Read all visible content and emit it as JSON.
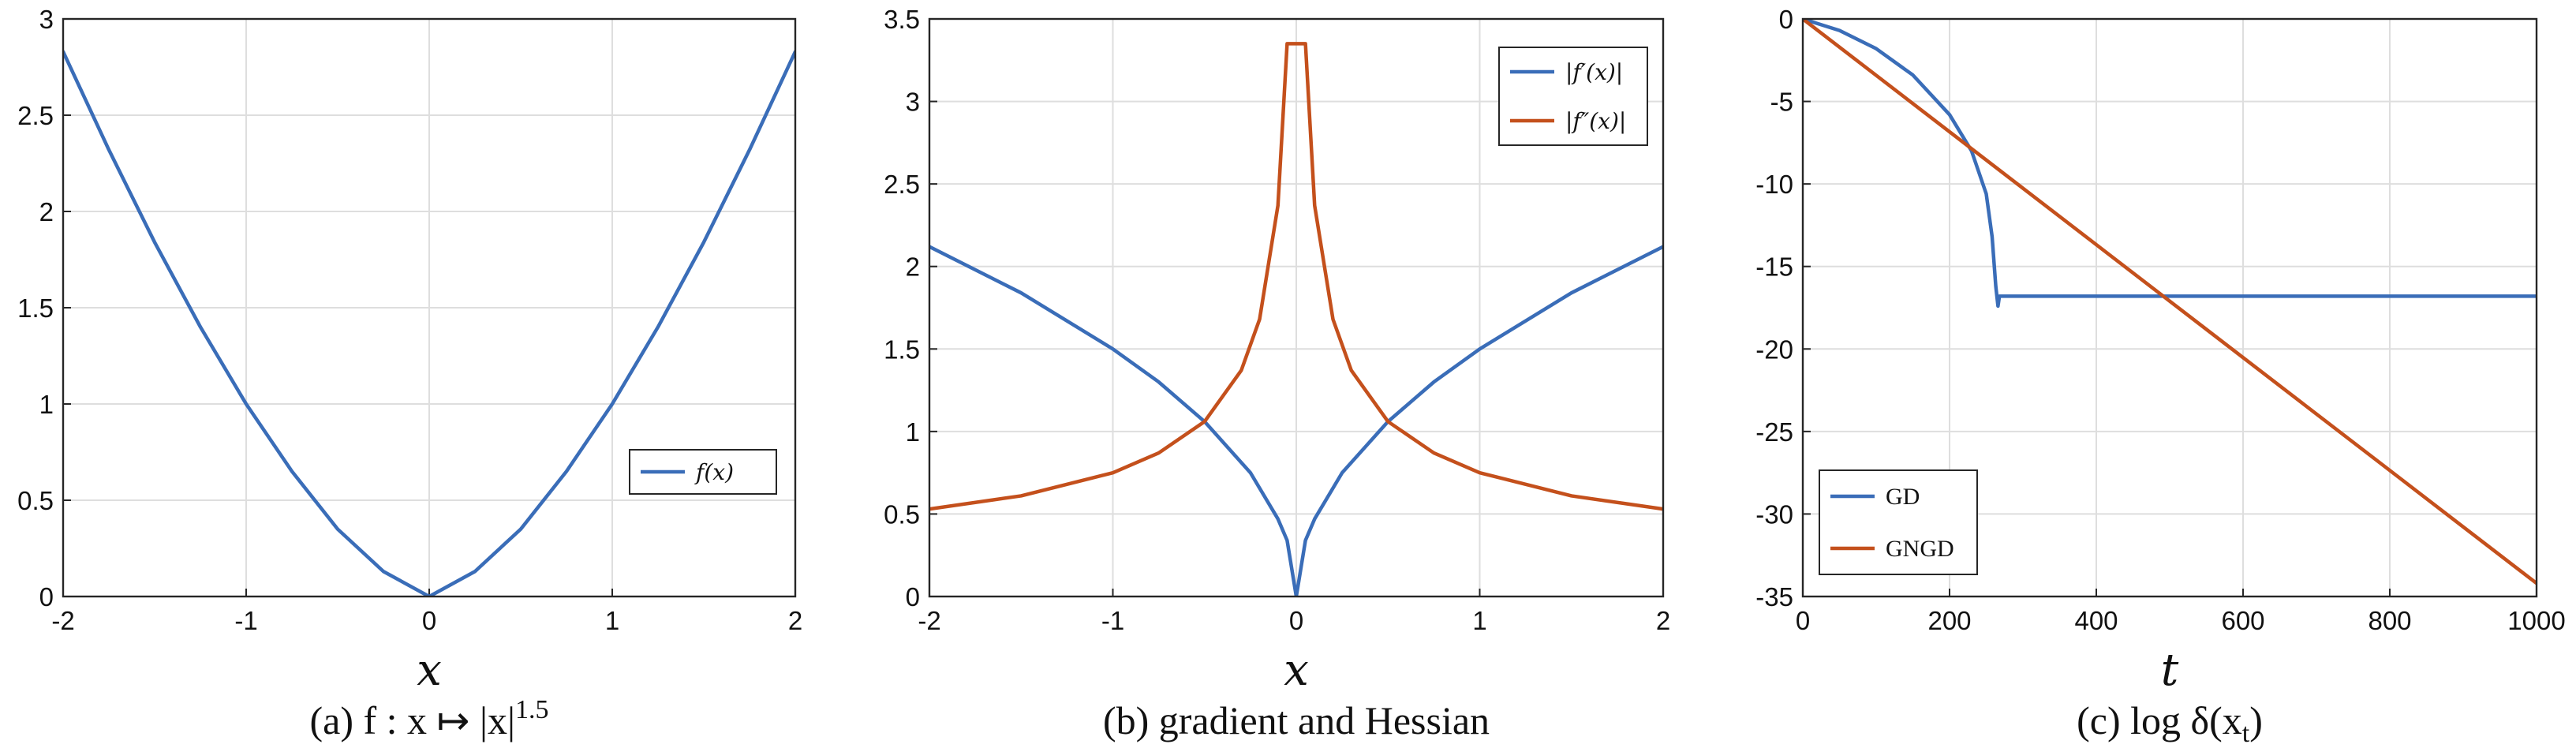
{
  "chart_data": [
    {
      "type": "line",
      "xlabel": "x",
      "caption": "(a) f : x ↦ |x|^1.5",
      "xlim": [
        -2,
        2
      ],
      "ylim": [
        0,
        3
      ],
      "xticks": [
        "-2",
        "-1",
        "0",
        "1",
        "2"
      ],
      "yticks": [
        "0",
        "0.5",
        "1",
        "1.5",
        "2",
        "2.5",
        "3"
      ],
      "legend_position": "lower-right",
      "grid": true,
      "series": [
        {
          "name": "f(x)",
          "color": "#3A6DB8",
          "x": [
            -2,
            -1.75,
            -1.5,
            -1.25,
            -1,
            -0.75,
            -0.5,
            -0.25,
            0,
            0.25,
            0.5,
            0.75,
            1,
            1.25,
            1.5,
            1.75,
            2
          ],
          "y": [
            2.83,
            2.32,
            1.84,
            1.4,
            1,
            0.65,
            0.35,
            0.13,
            0,
            0.13,
            0.35,
            0.65,
            1,
            1.4,
            1.84,
            2.32,
            2.83
          ]
        }
      ]
    },
    {
      "type": "line",
      "xlabel": "x",
      "caption": "(b) gradient and Hessian",
      "xlim": [
        -2,
        2
      ],
      "ylim": [
        0,
        3.5
      ],
      "xticks": [
        "-2",
        "-1",
        "0",
        "1",
        "2"
      ],
      "yticks": [
        "0",
        "0.5",
        "1",
        "1.5",
        "2",
        "2.5",
        "3",
        "3.5"
      ],
      "legend_position": "top-right",
      "grid": true,
      "series": [
        {
          "name": "|f′(x)|",
          "color": "#3A6DB8",
          "x": [
            -2,
            -1.5,
            -1,
            -0.75,
            -0.5,
            -0.25,
            -0.1,
            -0.05,
            0,
            0.05,
            0.1,
            0.25,
            0.5,
            0.75,
            1,
            1.5,
            2
          ],
          "y": [
            2.12,
            1.84,
            1.5,
            1.3,
            1.06,
            0.75,
            0.47,
            0.34,
            0,
            0.34,
            0.47,
            0.75,
            1.06,
            1.3,
            1.5,
            1.84,
            2.12
          ]
        },
        {
          "name": "|f″(x)|",
          "color": "#C4501C",
          "x": [
            -2,
            -1.5,
            -1,
            -0.75,
            -0.5,
            -0.3,
            -0.2,
            -0.1,
            -0.05,
            -0.03,
            0.03,
            0.05,
            0.1,
            0.2,
            0.3,
            0.5,
            0.75,
            1,
            1.5,
            2
          ],
          "y": [
            0.53,
            0.61,
            0.75,
            0.87,
            1.06,
            1.37,
            1.68,
            2.37,
            3.35,
            3.35,
            3.35,
            3.35,
            2.37,
            1.68,
            1.37,
            1.06,
            0.87,
            0.75,
            0.61,
            0.53
          ]
        }
      ]
    },
    {
      "type": "line",
      "xlabel": "t",
      "caption": "(c) log δ(x_t)",
      "xlim": [
        0,
        1000
      ],
      "ylim": [
        -35,
        0
      ],
      "xticks": [
        "0",
        "200",
        "400",
        "600",
        "800",
        "1000"
      ],
      "yticks": [
        "-35",
        "-30",
        "-25",
        "-20",
        "-15",
        "-10",
        "-5",
        "0"
      ],
      "legend_position": "bottom-left",
      "grid": true,
      "series": [
        {
          "name": "GD",
          "color": "#3A6DB8",
          "x": [
            0,
            50,
            100,
            150,
            200,
            230,
            250,
            258,
            263,
            266,
            268,
            1000
          ],
          "y": [
            0,
            -0.7,
            -1.8,
            -3.4,
            -5.8,
            -8,
            -10.6,
            -13.2,
            -16.2,
            -17.4,
            -16.8,
            -16.8
          ]
        },
        {
          "name": "GNGD",
          "color": "#C4501C",
          "x": [
            0,
            1000
          ],
          "y": [
            0,
            -34.2
          ]
        }
      ]
    }
  ]
}
